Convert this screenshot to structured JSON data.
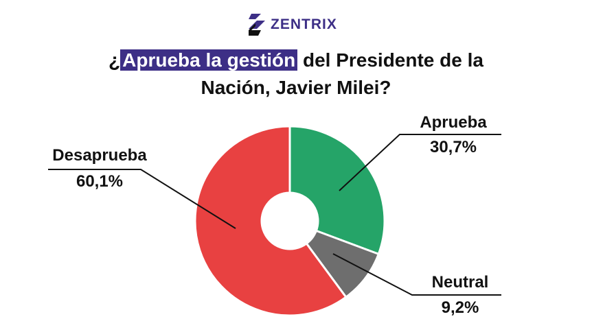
{
  "logo": {
    "text": "ZENTRIX"
  },
  "title": {
    "prefix": "¿",
    "highlight": "Aprueba la gestión",
    "line1_rest": " del Presidente de la",
    "line2": "Nación, Javier Milei?"
  },
  "chart_data": {
    "type": "pie",
    "donut": true,
    "title": "¿Aprueba la gestión del Presidente de la Nación, Javier Milei?",
    "categories": [
      "Aprueba",
      "Neutral",
      "Desaprueba"
    ],
    "values": [
      30.7,
      9.2,
      60.1
    ],
    "value_labels": [
      "30,7%",
      "9,2%",
      "60,1%"
    ],
    "colors": [
      "#25a468",
      "#6e6e6e",
      "#e84141"
    ],
    "start": "top, clockwise",
    "highlight_color": "#3d2f86"
  }
}
